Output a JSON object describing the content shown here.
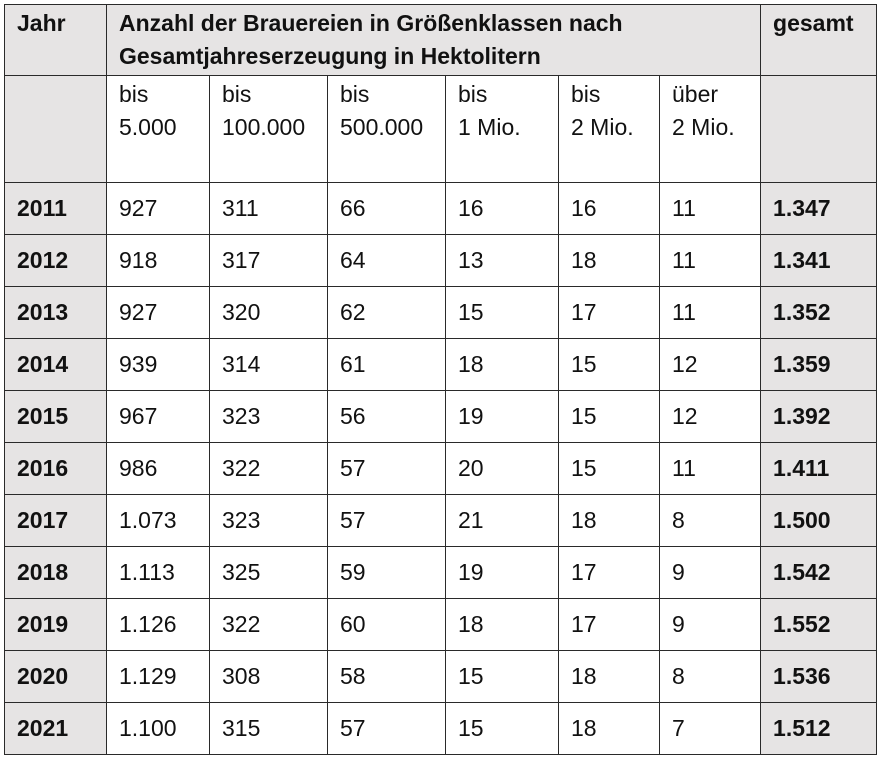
{
  "header": {
    "jahr": "Jahr",
    "group_line1": "Anzahl der Brauereien in Größenklassen nach",
    "group_line2": "Gesamtjahreserzeugung in Hektolitern",
    "gesamt": "gesamt"
  },
  "classes": [
    {
      "l1": "bis",
      "l2": "5.000"
    },
    {
      "l1": "bis",
      "l2": "100.000"
    },
    {
      "l1": "bis",
      "l2": "500.000"
    },
    {
      "l1": "bis",
      "l2": "1 Mio."
    },
    {
      "l1": "bis",
      "l2": "2 Mio."
    },
    {
      "l1": "über",
      "l2": "2 Mio."
    }
  ],
  "rows": [
    {
      "year": "2011",
      "v": [
        "927",
        "311",
        "66",
        "16",
        "16",
        "11"
      ],
      "total": "1.347"
    },
    {
      "year": "2012",
      "v": [
        "918",
        "317",
        "64",
        "13",
        "18",
        "11"
      ],
      "total": "1.341"
    },
    {
      "year": "2013",
      "v": [
        "927",
        "320",
        "62",
        "15",
        "17",
        "11"
      ],
      "total": "1.352"
    },
    {
      "year": "2014",
      "v": [
        "939",
        "314",
        "61",
        "18",
        "15",
        "12"
      ],
      "total": "1.359"
    },
    {
      "year": "2015",
      "v": [
        "967",
        "323",
        "56",
        "19",
        "15",
        "12"
      ],
      "total": "1.392"
    },
    {
      "year": "2016",
      "v": [
        "986",
        "322",
        "57",
        "20",
        "15",
        "11"
      ],
      "total": "1.411"
    },
    {
      "year": "2017",
      "v": [
        "1.073",
        "323",
        "57",
        "21",
        "18",
        "8"
      ],
      "total": "1.500"
    },
    {
      "year": "2018",
      "v": [
        "1.113",
        "325",
        "59",
        "19",
        "17",
        "9"
      ],
      "total": "1.542"
    },
    {
      "year": "2019",
      "v": [
        "1.126",
        "322",
        "60",
        "18",
        "17",
        "9"
      ],
      "total": "1.552"
    },
    {
      "year": "2020",
      "v": [
        "1.129",
        "308",
        "58",
        "15",
        "18",
        "8"
      ],
      "total": "1.536"
    },
    {
      "year": "2021",
      "v": [
        "1.100",
        "315",
        "57",
        "15",
        "18",
        "7"
      ],
      "total": "1.512"
    }
  ],
  "colors": {
    "shade": "#e6e4e4",
    "border": "#2a2a2a"
  }
}
